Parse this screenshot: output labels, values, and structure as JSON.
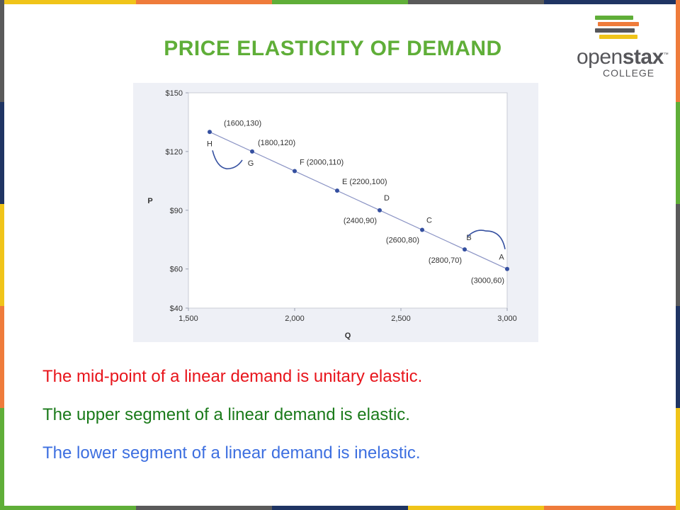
{
  "slide": {
    "title": "PRICE ELASTICITY OF DEMAND",
    "logo": {
      "word_light": "open",
      "word_bold": "stax",
      "tm": "™",
      "subtitle": "COLLEGE"
    },
    "statements": [
      {
        "text": "The mid-point of a linear demand is unitary elastic.",
        "color": "#e8141b"
      },
      {
        "text": "The upper segment of a linear demand is elastic.",
        "color": "#1a7a1a"
      },
      {
        "text": "The lower segment of a linear demand is inelastic.",
        "color": "#3d6fe0"
      }
    ]
  },
  "colors": {
    "title": "#5fae38",
    "chart_line": "#8a93c4",
    "chart_points": "#3550a0",
    "plot_background": "#ffffff",
    "chart_background": "#eef0f6",
    "border_palette": [
      "#f0c419",
      "#ef7b3b",
      "#5fae38",
      "#5a5a5a",
      "#1f3463"
    ]
  },
  "chart_data": {
    "type": "line",
    "xlabel": "Q",
    "ylabel": "P",
    "xlim": [
      1500,
      3000
    ],
    "ylim": [
      40,
      150
    ],
    "x_ticks": [
      1500,
      2000,
      2500,
      3000
    ],
    "x_tick_labels": [
      "1,500",
      "2,000",
      "2,500",
      "3,000"
    ],
    "y_ticks": [
      40,
      60,
      90,
      120,
      150
    ],
    "y_tick_labels": [
      "$40",
      "$60",
      "$90",
      "$120",
      "$150"
    ],
    "grid": false,
    "series": [
      {
        "points": [
          {
            "letter": "H",
            "x": 1600,
            "y": 130,
            "label": "(1600,130)"
          },
          {
            "letter": "G",
            "x": 1800,
            "y": 120,
            "label": "(1800,120)"
          },
          {
            "letter": "F",
            "x": 2000,
            "y": 110,
            "label": "F (2000,110)"
          },
          {
            "letter": "E",
            "x": 2200,
            "y": 100,
            "label": "E (2200,100)"
          },
          {
            "letter": "D",
            "x": 2400,
            "y": 90,
            "label": "(2400,90)"
          },
          {
            "letter": "C",
            "x": 2600,
            "y": 80,
            "label": "(2600,80)"
          },
          {
            "letter": "B",
            "x": 2800,
            "y": 70,
            "label": "(2800,70)"
          },
          {
            "letter": "A",
            "x": 3000,
            "y": 60,
            "label": "(3000,60)"
          }
        ]
      }
    ],
    "braces": [
      {
        "between": [
          "H",
          "G"
        ]
      },
      {
        "between": [
          "B",
          "A"
        ]
      }
    ]
  }
}
